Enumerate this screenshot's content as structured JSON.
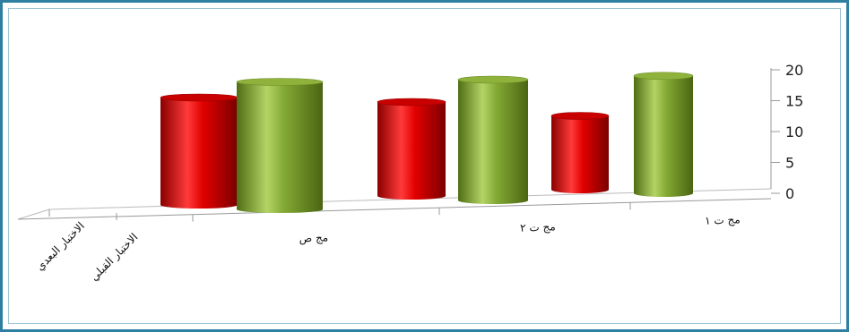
{
  "chart_data": {
    "type": "bar",
    "style": "3d-cylinder",
    "categories": [
      "مج ص",
      "مج ت ٢",
      "مج ت ١"
    ],
    "series": [
      {
        "name": "الاختبار القبلي",
        "color": "#e10000",
        "values": [
          16,
          14,
          11
        ]
      },
      {
        "name": "الاختبار البعدي",
        "color": "#7fa531",
        "values": [
          19,
          18,
          17.5
        ]
      }
    ],
    "yticks": [
      "0",
      "5",
      "10",
      "15",
      "20"
    ],
    "ylim": [
      0,
      20
    ],
    "grid": false
  }
}
